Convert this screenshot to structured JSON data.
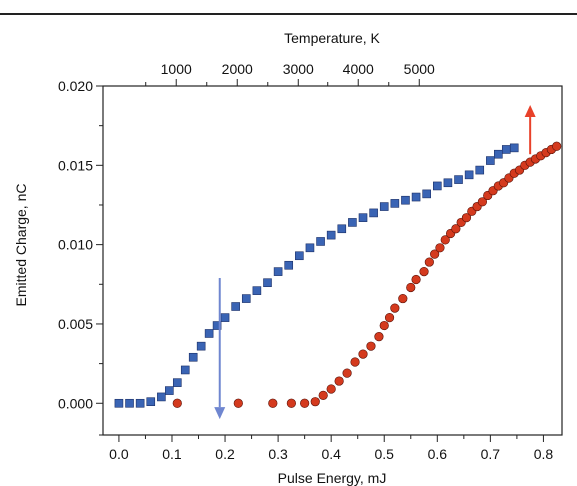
{
  "chart_data": {
    "type": "scatter",
    "title": "",
    "xlabel": "Pulse Energy, mJ",
    "ylabel": "Emitted Charge, nC",
    "x2label": "Temperature, K",
    "xlim": [
      -0.03,
      0.835
    ],
    "ylim": [
      -0.002,
      0.02
    ],
    "x_ticks": [
      0.0,
      0.1,
      0.2,
      0.3,
      0.4,
      0.5,
      0.6,
      0.7,
      0.8
    ],
    "x_tick_labels": [
      "0.0",
      "0.1",
      "0.2",
      "0.3",
      "0.4",
      "0.5",
      "0.6",
      "0.7",
      "0.8"
    ],
    "y_ticks": [
      0.0,
      0.005,
      0.01,
      0.015,
      0.02
    ],
    "y_tick_labels": [
      "0.000",
      "0.005",
      "0.010",
      "0.015",
      "0.020"
    ],
    "x2_ticks": [
      0.108,
      0.223,
      0.338,
      0.451,
      0.566
    ],
    "x2_tick_labels": [
      "1000",
      "2000",
      "3000",
      "4000",
      "5000"
    ],
    "grid": false,
    "series": [
      {
        "marker": "square",
        "color": "#3a64b4",
        "x": [
          0.0,
          0.02,
          0.04,
          0.06,
          0.08,
          0.095,
          0.11,
          0.125,
          0.14,
          0.155,
          0.17,
          0.185,
          0.2,
          0.22,
          0.24,
          0.26,
          0.28,
          0.3,
          0.32,
          0.34,
          0.36,
          0.38,
          0.4,
          0.42,
          0.44,
          0.46,
          0.48,
          0.5,
          0.52,
          0.54,
          0.56,
          0.58,
          0.6,
          0.62,
          0.64,
          0.66,
          0.68,
          0.7,
          0.715,
          0.73,
          0.745
        ],
        "y": [
          0.0,
          0.0,
          0.0,
          0.0001,
          0.0004,
          0.0008,
          0.0013,
          0.0021,
          0.0029,
          0.0036,
          0.0044,
          0.0049,
          0.0054,
          0.0061,
          0.0066,
          0.0071,
          0.0076,
          0.0083,
          0.0087,
          0.0093,
          0.0098,
          0.0102,
          0.0106,
          0.011,
          0.0114,
          0.0117,
          0.012,
          0.0124,
          0.0126,
          0.0128,
          0.013,
          0.0132,
          0.0137,
          0.0139,
          0.0141,
          0.0144,
          0.0147,
          0.0153,
          0.0157,
          0.016,
          0.0161
        ]
      },
      {
        "marker": "circle",
        "color": "#d43a1e",
        "x": [
          0.11,
          0.225,
          0.29,
          0.325,
          0.35,
          0.37,
          0.385,
          0.4,
          0.415,
          0.43,
          0.445,
          0.46,
          0.475,
          0.49,
          0.5,
          0.51,
          0.52,
          0.535,
          0.55,
          0.56,
          0.575,
          0.585,
          0.595,
          0.605,
          0.615,
          0.625,
          0.635,
          0.645,
          0.655,
          0.665,
          0.675,
          0.685,
          0.695,
          0.705,
          0.715,
          0.725,
          0.735,
          0.745,
          0.755,
          0.765,
          0.775,
          0.785,
          0.795,
          0.805,
          0.815,
          0.825
        ],
        "y": [
          0.0,
          0.0,
          0.0,
          0.0,
          0.0,
          0.0001,
          0.0005,
          0.0009,
          0.0014,
          0.0019,
          0.0026,
          0.0031,
          0.0036,
          0.0042,
          0.0049,
          0.0054,
          0.006,
          0.0066,
          0.0073,
          0.0078,
          0.0083,
          0.0089,
          0.0094,
          0.0098,
          0.0103,
          0.0107,
          0.011,
          0.0114,
          0.0117,
          0.0121,
          0.0124,
          0.0127,
          0.0131,
          0.0134,
          0.0137,
          0.0139,
          0.0142,
          0.0145,
          0.0147,
          0.015,
          0.0152,
          0.0154,
          0.0156,
          0.0158,
          0.016,
          0.0162
        ]
      }
    ],
    "arrows": [
      {
        "color": "#6f86d0",
        "direction": "down",
        "x": 0.19,
        "y_from": 0.0079,
        "y_to": -0.001
      },
      {
        "color": "#e8412a",
        "direction": "up",
        "x": 0.775,
        "y_from": 0.0157,
        "y_to": 0.0188
      }
    ]
  }
}
